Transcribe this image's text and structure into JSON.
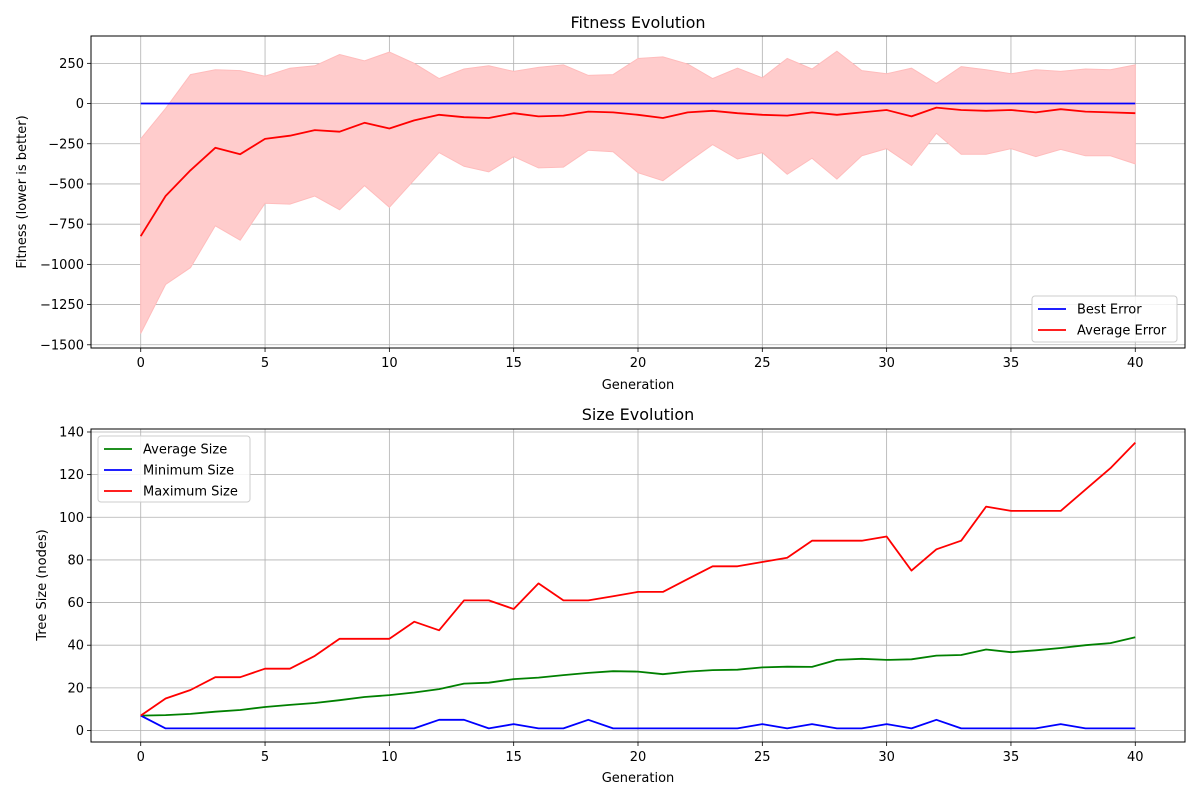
{
  "chart_data": [
    {
      "type": "line",
      "title": "Fitness Evolution",
      "xlabel": "Generation",
      "ylabel": "Fitness (lower is better)",
      "xlim": [
        -2,
        42
      ],
      "ylim": [
        -1520,
        420
      ],
      "x_ticks": [
        "0",
        "5",
        "10",
        "15",
        "20",
        "25",
        "30",
        "35",
        "40"
      ],
      "y_ticks": [
        "250",
        "0",
        "−250",
        "−500",
        "−750",
        "−1000",
        "−1250",
        "−1500"
      ],
      "grid": true,
      "legend_position": "lower-right",
      "x": [
        0,
        1,
        2,
        3,
        4,
        5,
        6,
        7,
        8,
        9,
        10,
        11,
        12,
        13,
        14,
        15,
        16,
        17,
        18,
        19,
        20,
        21,
        22,
        23,
        24,
        25,
        26,
        27,
        28,
        29,
        30,
        31,
        32,
        33,
        34,
        35,
        36,
        37,
        38,
        39,
        40
      ],
      "series": [
        {
          "name": "Best Error",
          "color": "#0000ff",
          "values": [
            0,
            0,
            0,
            0,
            0,
            0,
            0,
            0,
            0,
            0,
            0,
            0,
            0,
            0,
            0,
            0,
            0,
            0,
            0,
            0,
            0,
            0,
            0,
            0,
            0,
            0,
            0,
            0,
            0,
            0,
            0,
            0,
            0,
            0,
            0,
            0,
            0,
            0,
            0,
            0,
            0
          ]
        },
        {
          "name": "Average Error",
          "color": "#ff0000",
          "values": [
            -825,
            -575,
            -415,
            -275,
            -315,
            -220,
            -200,
            -165,
            -175,
            -120,
            -155,
            -105,
            -70,
            -85,
            -90,
            -60,
            -80,
            -75,
            -50,
            -55,
            -70,
            -90,
            -55,
            -45,
            -60,
            -70,
            -75,
            -55,
            -70,
            -55,
            -40,
            -80,
            -25,
            -40,
            -45,
            -40,
            -55,
            -35,
            -50,
            -55,
            -60
          ]
        }
      ],
      "band": {
        "color": "#ffcccc",
        "upper": [
          -220,
          -30,
          180,
          210,
          205,
          170,
          220,
          235,
          305,
          265,
          320,
          250,
          155,
          215,
          235,
          200,
          225,
          240,
          175,
          180,
          280,
          290,
          245,
          155,
          220,
          160,
          280,
          215,
          325,
          205,
          185,
          220,
          125,
          230,
          210,
          185,
          210,
          200,
          215,
          210,
          240
        ],
        "lower": [
          -1430,
          -1125,
          -1020,
          -760,
          -850,
          -620,
          -625,
          -575,
          -660,
          -510,
          -645,
          -475,
          -305,
          -390,
          -425,
          -330,
          -400,
          -395,
          -290,
          -300,
          -430,
          -480,
          -365,
          -255,
          -345,
          -305,
          -440,
          -340,
          -470,
          -325,
          -280,
          -385,
          -185,
          -315,
          -315,
          -280,
          -330,
          -285,
          -325,
          -325,
          -375
        ]
      }
    },
    {
      "type": "line",
      "title": "Size Evolution",
      "xlabel": "Generation",
      "ylabel": "Tree Size (nodes)",
      "xlim": [
        -2,
        42
      ],
      "ylim": [
        -5.4,
        141.4
      ],
      "x_ticks": [
        "0",
        "5",
        "10",
        "15",
        "20",
        "25",
        "30",
        "35",
        "40"
      ],
      "y_ticks": [
        "140",
        "120",
        "100",
        "80",
        "60",
        "40",
        "20",
        "0"
      ],
      "grid": true,
      "legend_position": "upper-left",
      "x": [
        0,
        1,
        2,
        3,
        4,
        5,
        6,
        7,
        8,
        9,
        10,
        11,
        12,
        13,
        14,
        15,
        16,
        17,
        18,
        19,
        20,
        21,
        22,
        23,
        24,
        25,
        26,
        27,
        28,
        29,
        30,
        31,
        32,
        33,
        34,
        35,
        36,
        37,
        38,
        39,
        40
      ],
      "series": [
        {
          "name": "Average Size",
          "color": "#008000",
          "values": [
            7,
            7.2,
            7.8,
            8.8,
            9.6,
            11,
            12,
            12.9,
            14.2,
            15.7,
            16.6,
            17.8,
            19.4,
            22,
            22.4,
            24.1,
            24.8,
            26,
            27,
            27.8,
            27.6,
            26.4,
            27.6,
            28.3,
            28.5,
            29.6,
            29.9,
            29.8,
            33.1,
            33.6,
            33.1,
            33.4,
            35.1,
            35.4,
            38,
            36.7,
            37.6,
            38.7,
            40,
            41,
            43.7
          ]
        },
        {
          "name": "Minimum Size",
          "color": "#0000ff",
          "values": [
            7,
            1,
            1,
            1,
            1,
            1,
            1,
            1,
            1,
            1,
            1,
            1,
            5,
            5,
            1,
            3,
            1,
            1,
            5,
            1,
            1,
            1,
            1,
            1,
            1,
            3,
            1,
            3,
            1,
            1,
            3,
            1,
            5,
            1,
            1,
            1,
            1,
            3,
            1,
            1,
            1
          ]
        },
        {
          "name": "Maximum Size",
          "color": "#ff0000",
          "values": [
            7,
            15,
            19,
            25,
            25,
            29,
            29,
            35,
            43,
            43,
            43,
            51,
            47,
            61,
            61,
            57,
            69,
            61,
            61,
            63,
            65,
            65,
            71,
            77,
            77,
            79,
            81,
            89,
            89,
            89,
            91,
            75,
            85,
            89,
            105,
            103,
            103,
            103,
            113,
            123,
            135
          ]
        }
      ]
    }
  ]
}
